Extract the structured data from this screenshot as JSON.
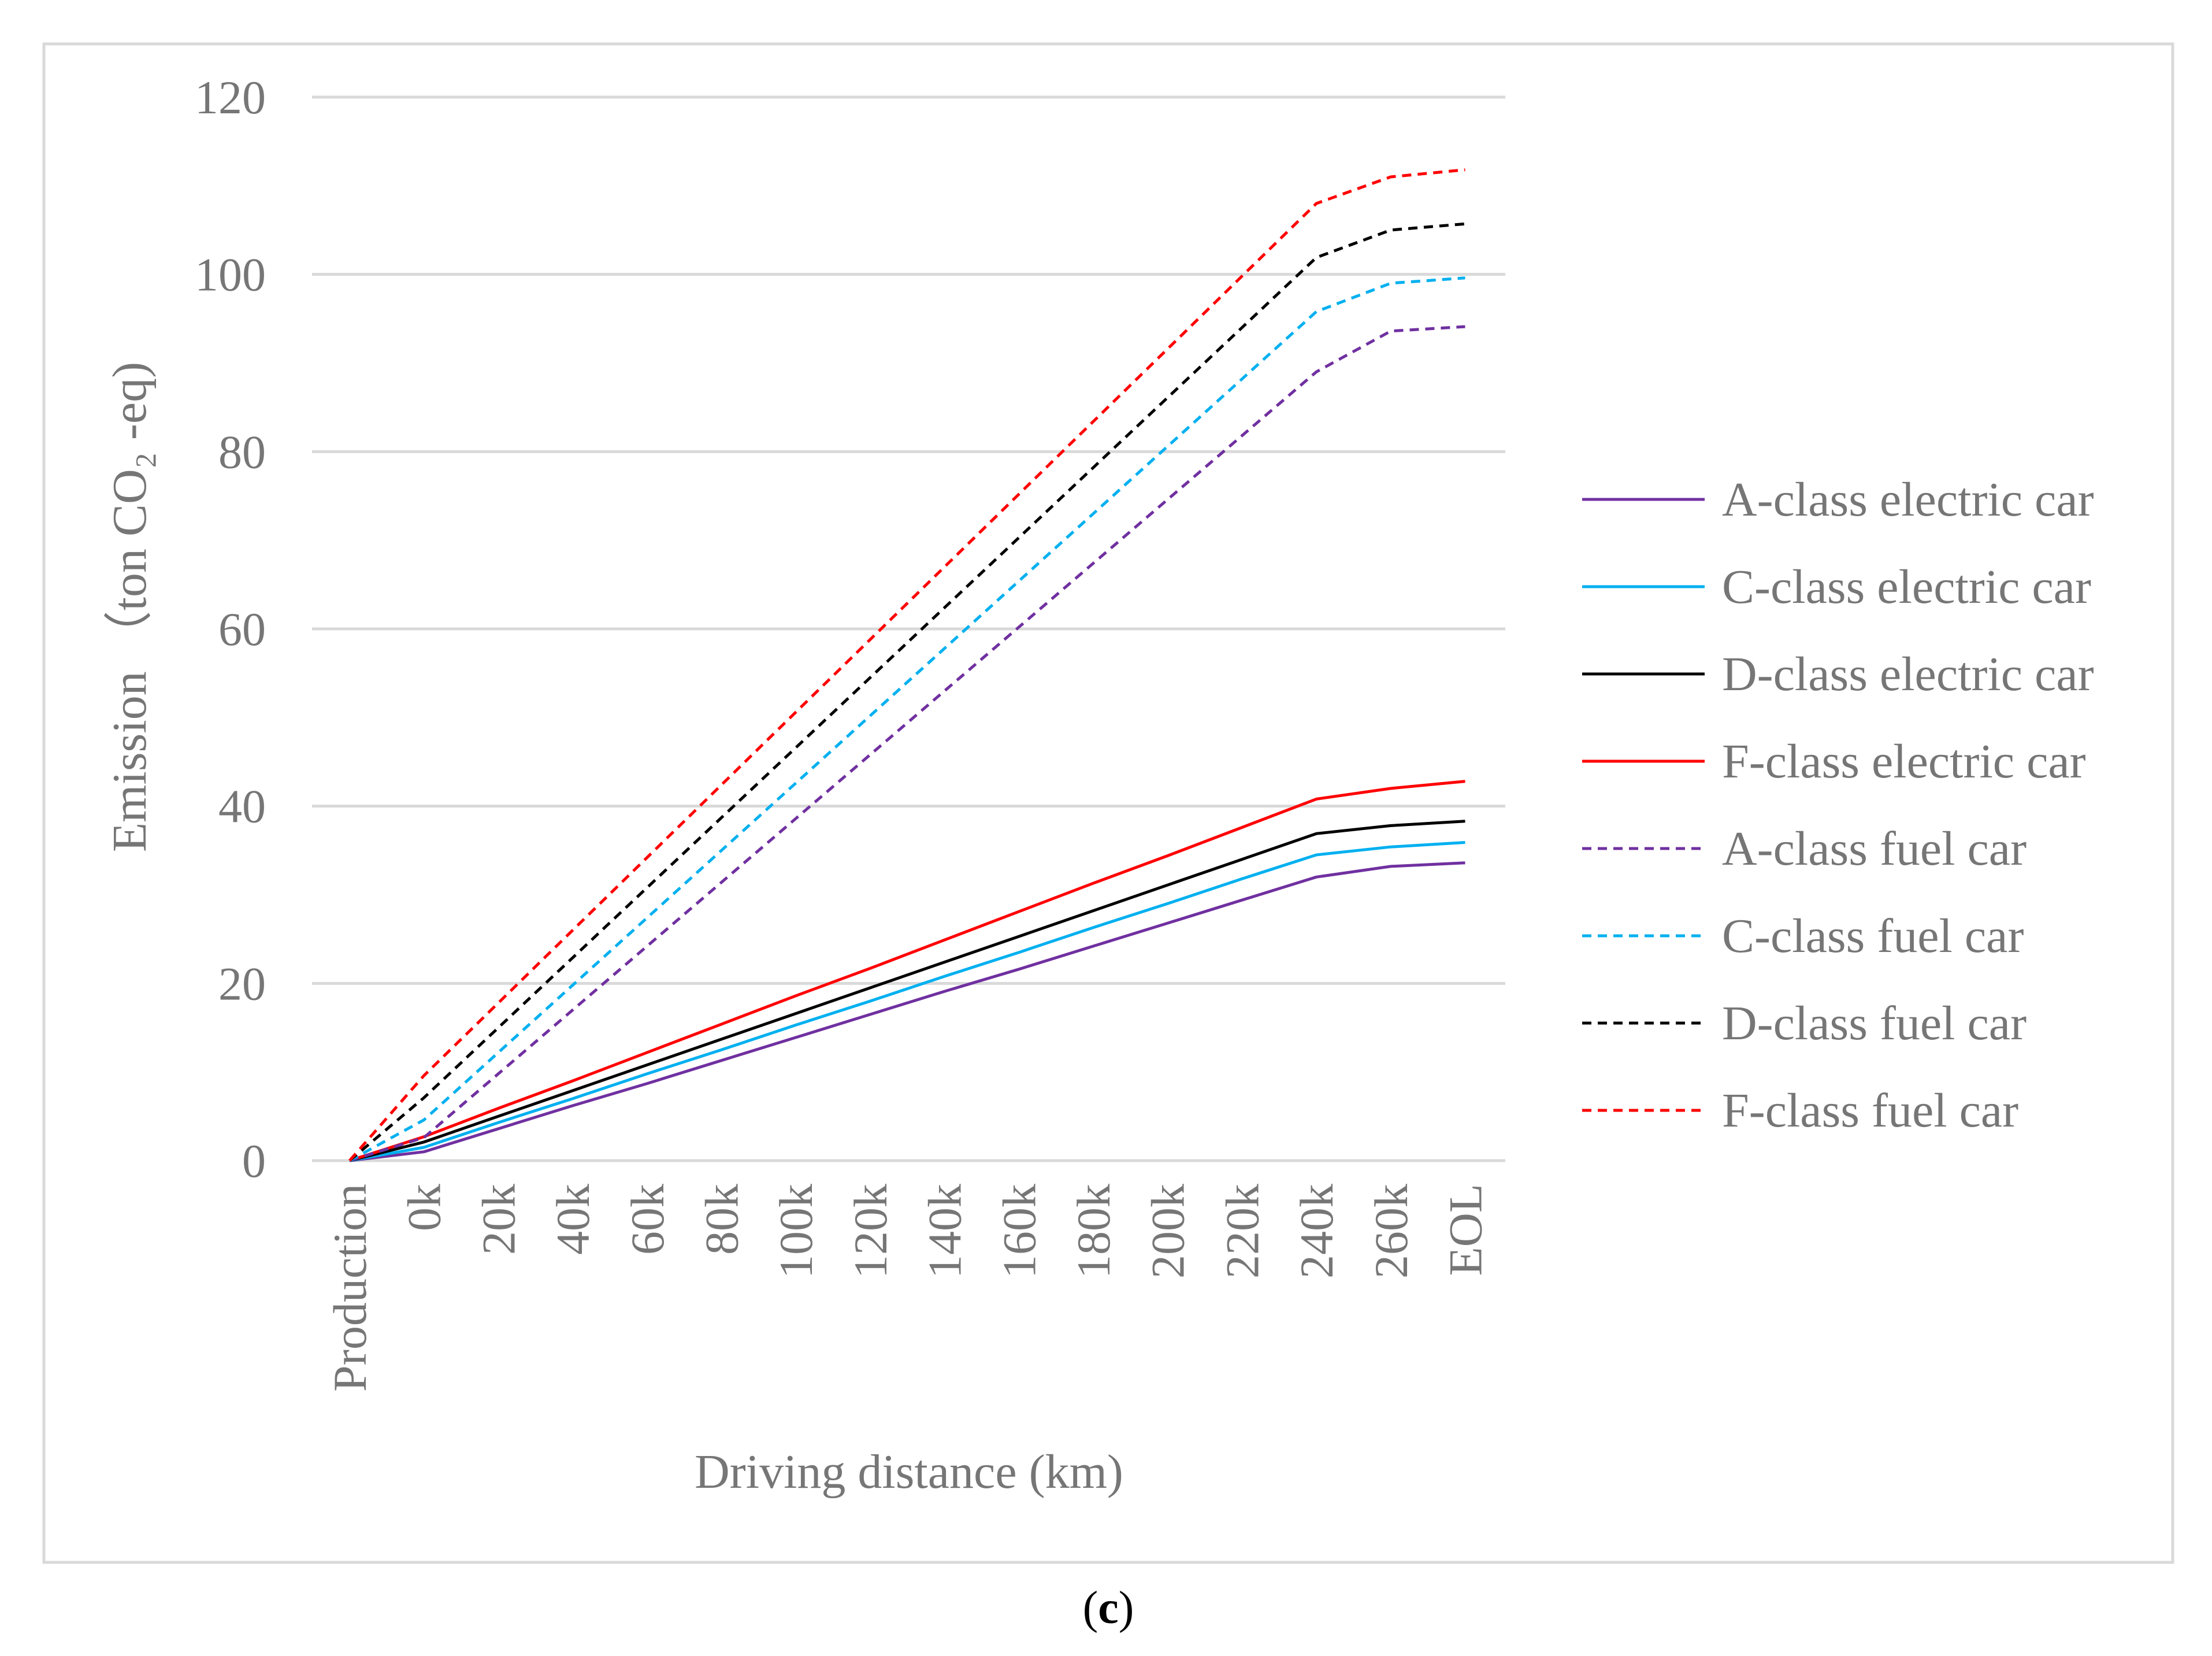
{
  "chart_data": {
    "type": "line",
    "title": "",
    "xlabel": "Driving distance (km)",
    "ylabel": "Emission （ton CO₂ -eq)",
    "ylim": [
      0,
      120
    ],
    "yticks": [
      0,
      20,
      40,
      60,
      80,
      100,
      120
    ],
    "ytick_labels": [
      "0",
      "20",
      "40",
      "60",
      "80",
      "100",
      "120"
    ],
    "grid": "horizontal",
    "legend_position": "right",
    "categories": [
      "Production",
      "0k",
      "20k",
      "40k",
      "60k",
      "80k",
      "100k",
      "120k",
      "140k",
      "160k",
      "180k",
      "200k",
      "220k",
      "240k",
      "260k",
      "EOL"
    ],
    "series": [
      {
        "name": "A-class electric car",
        "color": "#7030a0",
        "dash": "solid",
        "values": [
          0,
          1.0,
          3.6,
          6.2,
          8.7,
          11.3,
          13.9,
          16.5,
          19.1,
          21.6,
          24.2,
          26.8,
          29.4,
          32.0,
          33.2,
          33.6
        ]
      },
      {
        "name": "C-class electric car",
        "color": "#00b0f0",
        "dash": "solid",
        "values": [
          0,
          1.5,
          4.3,
          7.0,
          9.8,
          12.5,
          15.3,
          18.0,
          20.8,
          23.5,
          26.3,
          29.0,
          31.8,
          34.5,
          35.4,
          35.9
        ]
      },
      {
        "name": "D-class electric car",
        "color": "#000000",
        "dash": "solid",
        "values": [
          0,
          2.1,
          5.0,
          7.9,
          10.8,
          13.7,
          16.6,
          19.5,
          22.4,
          25.3,
          28.2,
          31.1,
          34.0,
          36.9,
          37.8,
          38.3
        ]
      },
      {
        "name": "F-class electric car",
        "color": "#ff0000",
        "dash": "solid",
        "values": [
          0,
          2.7,
          5.9,
          9.0,
          12.2,
          15.4,
          18.6,
          21.7,
          24.9,
          28.1,
          31.3,
          34.4,
          37.6,
          40.8,
          42.0,
          42.8
        ]
      },
      {
        "name": "A-class fuel car",
        "color": "#7030a0",
        "dash": "dashed",
        "values": [
          0,
          2.6,
          9.8,
          17.0,
          24.2,
          31.4,
          38.6,
          45.8,
          53.0,
          60.2,
          67.4,
          74.6,
          81.8,
          89.0,
          93.6,
          94.1
        ]
      },
      {
        "name": "C-class fuel car",
        "color": "#00b0f0",
        "dash": "dashed",
        "values": [
          0,
          4.6,
          12.2,
          19.8,
          27.4,
          35.0,
          42.6,
          50.2,
          57.8,
          65.4,
          73.0,
          80.6,
          88.2,
          95.8,
          99.0,
          99.6
        ]
      },
      {
        "name": "D-class fuel car",
        "color": "#000000",
        "dash": "dashed",
        "values": [
          0,
          7.1,
          15.0,
          22.9,
          30.8,
          38.7,
          46.6,
          54.5,
          62.4,
          70.3,
          78.2,
          86.1,
          94.0,
          101.9,
          105.0,
          105.7
        ]
      },
      {
        "name": "F-class fuel car",
        "color": "#ff0000",
        "dash": "dashed",
        "values": [
          0,
          9.6,
          17.8,
          26.0,
          34.2,
          42.4,
          50.6,
          58.8,
          67.0,
          75.2,
          83.4,
          91.6,
          99.8,
          108.0,
          111.0,
          111.8
        ]
      }
    ],
    "colors": {
      "gridline": "#d9d9d9",
      "frame": "#d9d9d9",
      "text": "#767676"
    }
  },
  "caption": {
    "open": "(",
    "letter": "c",
    "close": ")"
  }
}
